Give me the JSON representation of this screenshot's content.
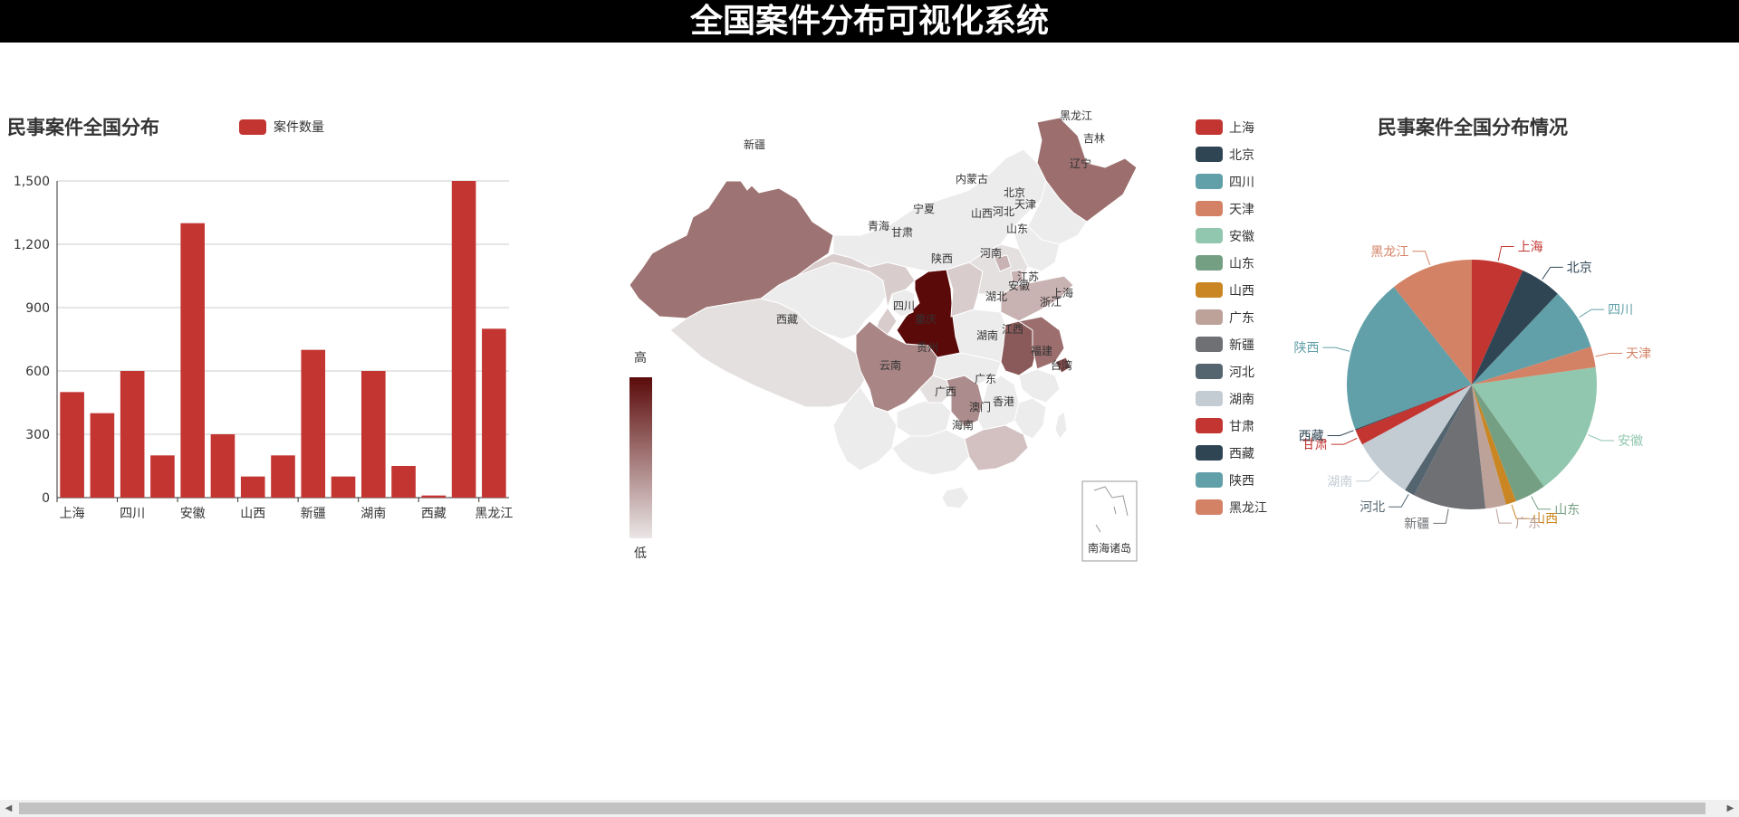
{
  "header": {
    "title": "全国案件分布可视化系统"
  },
  "bar_chart": {
    "title": "民事案件全国分布",
    "legend_label": "案件数量",
    "color": "#c23531"
  },
  "map": {
    "visualmap": {
      "high_label": "高",
      "low_label": "低",
      "color_high": "#5b0a0a",
      "color_low": "#ebe6e6"
    },
    "south_sea_label": "南海诸岛",
    "legend_items": [
      {
        "label": "上海",
        "color": "#c23531"
      },
      {
        "label": "北京",
        "color": "#2f4554"
      },
      {
        "label": "四川",
        "color": "#61a0a8"
      },
      {
        "label": "天津",
        "color": "#d48265"
      },
      {
        "label": "安徽",
        "color": "#91c7ae"
      },
      {
        "label": "山东",
        "color": "#749f83"
      },
      {
        "label": "山西",
        "color": "#ca8622"
      },
      {
        "label": "广东",
        "color": "#bda29a"
      },
      {
        "label": "新疆",
        "color": "#6e7074"
      },
      {
        "label": "河北",
        "color": "#546570"
      },
      {
        "label": "湖南",
        "color": "#c4ccd3"
      },
      {
        "label": "甘肃",
        "color": "#c23531"
      },
      {
        "label": "西藏",
        "color": "#2f4554"
      },
      {
        "label": "陕西",
        "color": "#61a0a8"
      },
      {
        "label": "黑龙江",
        "color": "#d48265"
      }
    ],
    "region_labels": [
      "黑龙江",
      "吉林",
      "辽宁",
      "内蒙古",
      "北京",
      "天津",
      "河北",
      "山西",
      "山东",
      "宁夏",
      "甘肃",
      "青海",
      "新疆",
      "西藏",
      "陕西",
      "河南",
      "江苏",
      "安徽",
      "上海",
      "浙江",
      "湖北",
      "四川",
      "重庆",
      "湖南",
      "江西",
      "贵州",
      "云南",
      "广西",
      "广东",
      "福建",
      "台湾",
      "香港",
      "澳门",
      "海南"
    ]
  },
  "pie_chart": {
    "title": "民事案件全国分布情况"
  },
  "chart_data": [
    {
      "type": "bar",
      "title": "民事案件全国分布",
      "categories": [
        "上海",
        "北京",
        "四川",
        "天津",
        "安徽",
        "山东",
        "山西",
        "广东",
        "新疆",
        "河北",
        "湖南",
        "甘肃",
        "西藏",
        "陕西",
        "黑龙江"
      ],
      "tick_labels": [
        "上海",
        "四川",
        "安徽",
        "山西",
        "新疆",
        "湖南",
        "西藏",
        "黑龙江"
      ],
      "series": [
        {
          "name": "案件数量",
          "values": [
            500,
            400,
            600,
            200,
            1300,
            300,
            100,
            200,
            700,
            100,
            600,
            150,
            10,
            1500,
            800
          ]
        }
      ],
      "ylim": [
        0,
        1500
      ],
      "yticks": [
        0,
        300,
        600,
        900,
        1200,
        1500
      ],
      "grid": true,
      "legend_position": "top"
    },
    {
      "type": "pie",
      "title": "民事案件全国分布情况",
      "labels": [
        "上海",
        "北京",
        "四川",
        "天津",
        "安徽",
        "山东",
        "山西",
        "广东",
        "新疆",
        "河北",
        "湖南",
        "甘肃",
        "西藏",
        "陕西",
        "黑龙江"
      ],
      "values": [
        500,
        400,
        600,
        200,
        1300,
        300,
        100,
        200,
        700,
        100,
        600,
        150,
        10,
        1500,
        800
      ],
      "colors": [
        "#c23531",
        "#2f4554",
        "#61a0a8",
        "#d48265",
        "#91c7ae",
        "#749f83",
        "#ca8622",
        "#bda29a",
        "#6e7074",
        "#546570",
        "#c4ccd3",
        "#c23531",
        "#2f4554",
        "#61a0a8",
        "#d48265"
      ]
    }
  ]
}
